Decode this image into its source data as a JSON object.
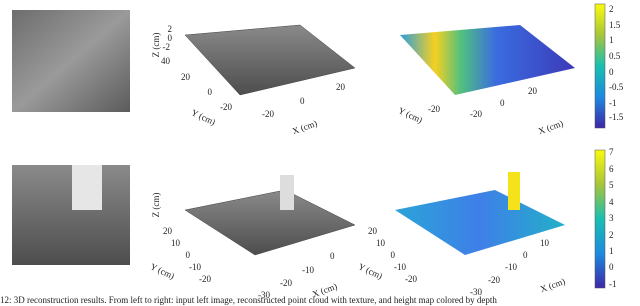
{
  "caption": "12: 3D reconstruction results. From left to right: input left image, reconstructed point cloud with texture, and height map colored by depth",
  "rows": [
    {
      "textured_plot": {
        "z_label": "Z (cm)",
        "z_ticks": [
          "2",
          "0",
          "-2"
        ],
        "y_label": "Y (cm)",
        "y_ticks": [
          "40",
          "20",
          "0",
          "-20"
        ],
        "x_label": "X (cm)",
        "x_ticks": [
          "-20",
          "0",
          "20"
        ]
      },
      "height_plot": {
        "y_label": "Y (cm)",
        "y_ticks": [
          "-20"
        ],
        "x_label": "X (cm)",
        "x_ticks": [
          "-20",
          "0",
          "20"
        ],
        "colorbar_ticks": [
          "2",
          "1.5",
          "1",
          "0.5",
          "0",
          "-0.5",
          "-1",
          "-1.5"
        ]
      }
    },
    {
      "textured_plot": {
        "z_label": "Z (cm)",
        "y_label": "Y (cm)",
        "y_ticks": [
          "20",
          "10",
          "0",
          "-10",
          "-20"
        ],
        "x_label": "X (cm)",
        "x_ticks": [
          "-30",
          "-20",
          "-10",
          "0"
        ]
      },
      "height_plot": {
        "y_label": "Y (cm)",
        "y_ticks": [
          "20",
          "10",
          "0",
          "-10",
          "-20"
        ],
        "x_label": "X (cm)",
        "x_ticks": [
          "-30",
          "-20",
          "-10",
          "0",
          "10"
        ],
        "colorbar_ticks": [
          "7",
          "6",
          "5",
          "4",
          "3",
          "2",
          "1",
          "0",
          "-1"
        ]
      }
    }
  ]
}
